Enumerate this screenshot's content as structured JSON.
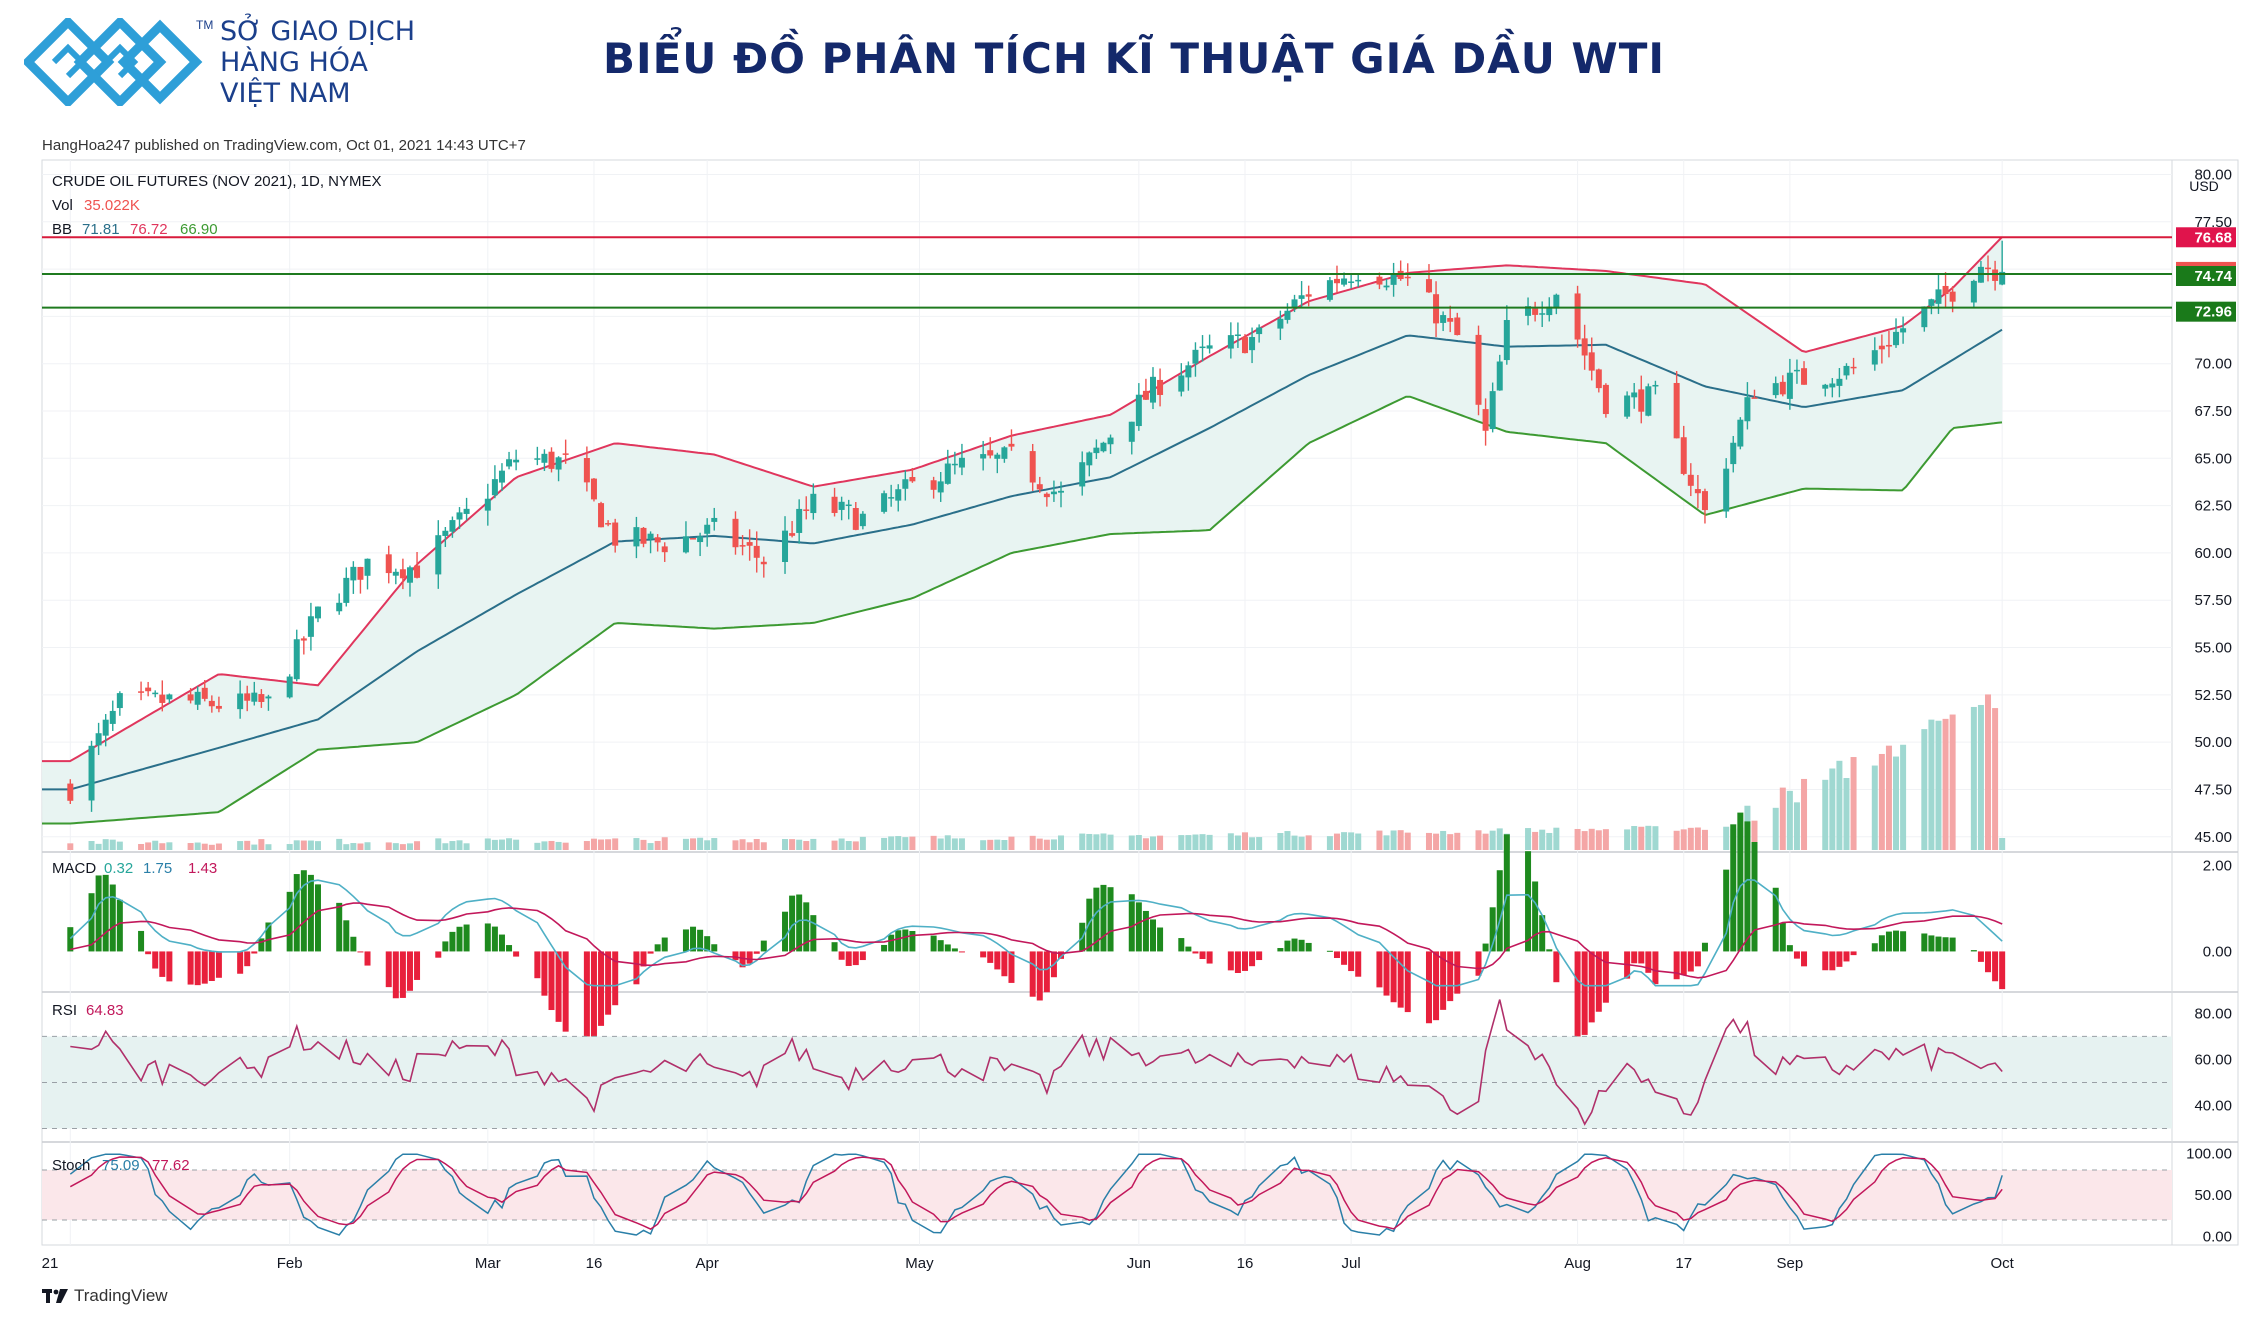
{
  "header": {
    "logo_lines": [
      "SỞ GIAO DỊCH",
      "HÀNG HÓA",
      "VIỆT NAM"
    ],
    "logo_tm": "TM",
    "title": "BIỂU ĐỒ PHÂN TÍCH KĨ THUẬT GIÁ DẦU WTI",
    "brand_color": "#1b3f8b",
    "logo_color": "#2e9fd8"
  },
  "publish_line": "HangHoa247 published on TradingView.com, Oct 01, 2021 14:43 UTC+7",
  "footer": {
    "brand": "TradingView",
    "logo_icon": "tradingview-logo-icon"
  },
  "legend": {
    "symbol": "CRUDE OIL FUTURES (NOV 2021), 1D, NYMEX",
    "vol_label": "Vol",
    "vol_value": "35.022K",
    "bb_label": "BB",
    "bb_values": [
      "71.81",
      "76.72",
      "66.90"
    ],
    "macd_label": "MACD",
    "macd_values": [
      "0.32",
      "1.75",
      "1.43"
    ],
    "rsi_label": "RSI",
    "rsi_value": "64.83",
    "stoch_label": "Stoch",
    "stoch_values": [
      "75.09",
      "77.62"
    ]
  },
  "colors": {
    "up": "#26a69a",
    "down": "#ef5350",
    "bb_upper": "#e0365d",
    "bb_basis": "#2a6f8a",
    "bb_lower": "#3d9a32",
    "bb_fill": "#e8f4f2",
    "macd_line": "#4fb0c6",
    "signal_line": "#c2185b",
    "resistance": "#d81b3c",
    "support": "#1f7a1f"
  },
  "chart_data": {
    "type": "candlestick",
    "title": "CRUDE OIL FUTURES (NOV 2021), 1D, NYMEX",
    "currency": "USD",
    "price_axis": {
      "ticks": [
        "80.00",
        "77.50",
        "75.00",
        "72.50",
        "70.00",
        "67.50",
        "65.00",
        "62.50",
        "60.00",
        "57.50",
        "55.00",
        "52.50",
        "50.00",
        "47.50",
        "45.00"
      ],
      "range": [
        44.3,
        80.5
      ]
    },
    "x_labels": [
      "21",
      "Feb",
      "Mar",
      "16",
      "Apr",
      "May",
      "Jun",
      "16",
      "Jul",
      "Aug",
      "17",
      "Sep",
      "Oct"
    ],
    "close_path": [
      [
        "2021-01-01",
        47.6
      ],
      [
        "2021-01-08",
        52.0
      ],
      [
        "2021-01-15",
        52.2
      ],
      [
        "2021-01-22",
        52.0
      ],
      [
        "2021-01-29",
        52.0
      ],
      [
        "2021-02-05",
        56.8
      ],
      [
        "2021-02-12",
        59.5
      ],
      [
        "2021-02-19",
        59.2
      ],
      [
        "2021-02-26",
        62.0
      ],
      [
        "2021-03-05",
        65.0
      ],
      [
        "2021-03-12",
        64.8
      ],
      [
        "2021-03-19",
        60.8
      ],
      [
        "2021-03-26",
        60.5
      ],
      [
        "2021-04-02",
        61.2
      ],
      [
        "2021-04-09",
        59.6
      ],
      [
        "2021-04-16",
        62.6
      ],
      [
        "2021-04-23",
        61.8
      ],
      [
        "2021-04-30",
        63.5
      ],
      [
        "2021-05-07",
        64.6
      ],
      [
        "2021-05-14",
        65.0
      ],
      [
        "2021-05-21",
        63.0
      ],
      [
        "2021-05-28",
        66.3
      ],
      [
        "2021-06-04",
        69.0
      ],
      [
        "2021-06-11",
        70.7
      ],
      [
        "2021-06-18",
        71.4
      ],
      [
        "2021-06-25",
        73.8
      ],
      [
        "2021-07-02",
        75.0
      ],
      [
        "2021-07-09",
        74.4
      ],
      [
        "2021-07-16",
        71.4
      ],
      [
        "2021-07-20",
        66.2
      ],
      [
        "2021-07-23",
        71.8
      ],
      [
        "2021-07-30",
        73.9
      ],
      [
        "2021-08-06",
        68.0
      ],
      [
        "2021-08-13",
        68.2
      ],
      [
        "2021-08-20",
        62.1
      ],
      [
        "2021-08-27",
        68.7
      ],
      [
        "2021-09-03",
        69.2
      ],
      [
        "2021-09-10",
        69.7
      ],
      [
        "2021-09-17",
        71.9
      ],
      [
        "2021-09-24",
        73.9
      ],
      [
        "2021-09-28",
        75.3
      ],
      [
        "2021-10-01",
        74.85
      ]
    ],
    "price_labels": [
      {
        "value": 76.68,
        "text": "76.68",
        "kind": "resistance"
      },
      {
        "value": 74.85,
        "text": "74.85",
        "kind": "last-price"
      },
      {
        "value": 74.74,
        "text": "74.74",
        "kind": "support"
      },
      {
        "value": 72.96,
        "text": "72.96",
        "kind": "support"
      }
    ],
    "horizontal_lines": [
      76.68,
      74.74,
      72.96
    ],
    "bb_upper_path": [
      [
        "2021-01-01",
        49.0
      ],
      [
        "2021-01-22",
        53.6
      ],
      [
        "2021-02-05",
        53.0
      ],
      [
        "2021-02-19",
        59.4
      ],
      [
        "2021-03-05",
        64.0
      ],
      [
        "2021-03-19",
        65.8
      ],
      [
        "2021-04-02",
        65.2
      ],
      [
        "2021-04-16",
        63.5
      ],
      [
        "2021-04-30",
        64.4
      ],
      [
        "2021-05-14",
        66.2
      ],
      [
        "2021-05-28",
        67.3
      ],
      [
        "2021-06-11",
        70.4
      ],
      [
        "2021-06-25",
        73.3
      ],
      [
        "2021-07-09",
        74.8
      ],
      [
        "2021-07-23",
        75.2
      ],
      [
        "2021-08-06",
        74.9
      ],
      [
        "2021-08-20",
        74.2
      ],
      [
        "2021-09-03",
        70.6
      ],
      [
        "2021-09-17",
        72.0
      ],
      [
        "2021-09-24",
        74.0
      ],
      [
        "2021-10-01",
        76.7
      ]
    ],
    "bb_basis_path": [
      [
        "2021-01-01",
        47.5
      ],
      [
        "2021-01-22",
        49.7
      ],
      [
        "2021-02-05",
        51.2
      ],
      [
        "2021-02-19",
        54.8
      ],
      [
        "2021-03-05",
        57.8
      ],
      [
        "2021-03-19",
        60.6
      ],
      [
        "2021-04-02",
        60.9
      ],
      [
        "2021-04-16",
        60.5
      ],
      [
        "2021-04-30",
        61.5
      ],
      [
        "2021-05-14",
        63.0
      ],
      [
        "2021-05-28",
        64.0
      ],
      [
        "2021-06-11",
        66.6
      ],
      [
        "2021-06-25",
        69.4
      ],
      [
        "2021-07-09",
        71.5
      ],
      [
        "2021-07-23",
        70.9
      ],
      [
        "2021-08-06",
        71.0
      ],
      [
        "2021-08-20",
        68.8
      ],
      [
        "2021-09-03",
        67.7
      ],
      [
        "2021-09-17",
        68.6
      ],
      [
        "2021-10-01",
        71.8
      ]
    ],
    "bb_lower_path": [
      [
        "2021-01-01",
        45.7
      ],
      [
        "2021-01-22",
        46.3
      ],
      [
        "2021-02-05",
        49.6
      ],
      [
        "2021-02-19",
        50.0
      ],
      [
        "2021-03-05",
        52.5
      ],
      [
        "2021-03-19",
        56.3
      ],
      [
        "2021-04-02",
        56.0
      ],
      [
        "2021-04-16",
        56.3
      ],
      [
        "2021-04-30",
        57.6
      ],
      [
        "2021-05-14",
        60.0
      ],
      [
        "2021-05-28",
        61.0
      ],
      [
        "2021-06-11",
        61.2
      ],
      [
        "2021-06-25",
        65.8
      ],
      [
        "2021-07-09",
        68.3
      ],
      [
        "2021-07-23",
        66.4
      ],
      [
        "2021-08-06",
        65.8
      ],
      [
        "2021-08-20",
        62.0
      ],
      [
        "2021-09-03",
        63.4
      ],
      [
        "2021-09-17",
        63.3
      ],
      [
        "2021-09-24",
        66.6
      ],
      [
        "2021-10-01",
        66.9
      ]
    ],
    "macd": {
      "axis_ticks": [
        "2.00",
        "0.00"
      ],
      "range": [
        -0.9,
        2.25
      ],
      "line": 1.75,
      "signal": 1.43,
      "histogram": 0.32
    },
    "rsi": {
      "axis_ticks": [
        "80.00",
        "60.00",
        "40.00"
      ],
      "range": [
        25,
        88
      ],
      "bands": [
        30,
        50,
        70
      ],
      "last": 64.83
    },
    "stoch": {
      "axis_ticks": [
        "100.00",
        "50.00",
        "0.00"
      ],
      "range": [
        -10,
        110
      ],
      "bands": [
        20,
        80
      ],
      "k": 75.09,
      "d": 77.62
    },
    "volume_last": "35.022K"
  }
}
